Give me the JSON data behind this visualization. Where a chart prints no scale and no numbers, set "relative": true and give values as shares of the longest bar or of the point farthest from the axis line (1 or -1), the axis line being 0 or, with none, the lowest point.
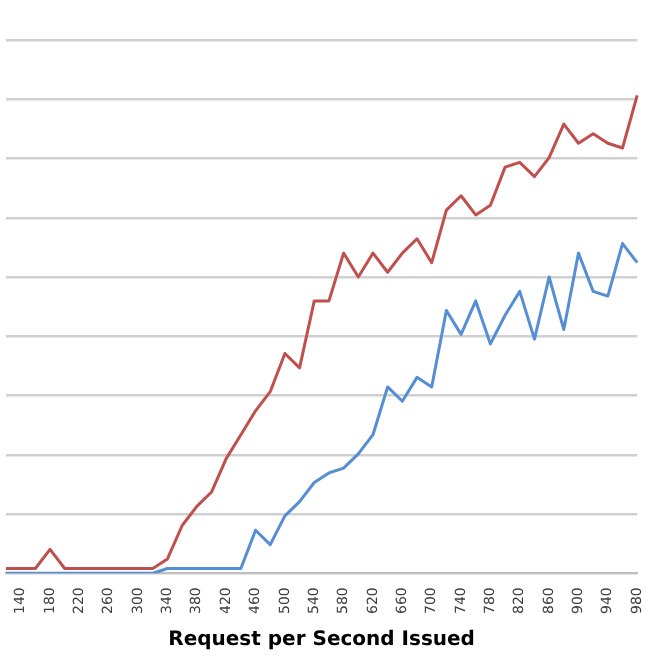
{
  "chart_data": {
    "type": "line",
    "relative": true,
    "xlabel": "Request per Second Issued",
    "grid": "y",
    "legend": false,
    "marker": "none",
    "line_style": "solid",
    "categories": [
      null,
      "140",
      null,
      "180",
      null,
      "220",
      null,
      "260",
      null,
      "300",
      null,
      "340",
      null,
      "380",
      null,
      "420",
      null,
      "460",
      null,
      "500",
      null,
      "540",
      null,
      "580",
      null,
      "620",
      null,
      "660",
      null,
      "700",
      null,
      "740",
      null,
      "780",
      null,
      "820",
      null,
      "860",
      null,
      "900",
      null,
      "940",
      null,
      "980"
    ],
    "series": [
      {
        "color": "#c0504d",
        "values": [
          0.01,
          0.01,
          0.01,
          0.05,
          0.01,
          0.01,
          0.01,
          0.01,
          0.01,
          0.01,
          0.01,
          0.03,
          0.1,
          0.14,
          0.17,
          0.24,
          0.29,
          0.34,
          0.38,
          0.46,
          0.43,
          0.57,
          0.57,
          0.67,
          0.62,
          0.67,
          0.63,
          0.67,
          0.7,
          0.65,
          0.76,
          0.79,
          0.75,
          0.77,
          0.85,
          0.86,
          0.83,
          0.87,
          0.94,
          0.9,
          0.92,
          0.9,
          0.89,
          1
        ]
      },
      {
        "color": "#558ed5",
        "values": [
          0,
          0,
          0,
          0,
          0,
          0,
          0,
          0,
          0,
          0,
          0,
          0.01,
          0.01,
          0.01,
          0.01,
          0.01,
          0.01,
          0.09,
          0.06,
          0.12,
          0.15,
          0.19,
          0.21,
          0.22,
          0.25,
          0.29,
          0.39,
          0.36,
          0.41,
          0.39,
          0.55,
          0.5,
          0.57,
          0.48,
          0.54,
          0.59,
          0.49,
          0.62,
          0.51,
          0.67,
          0.59,
          0.58,
          0.69,
          0.65
        ]
      }
    ]
  }
}
